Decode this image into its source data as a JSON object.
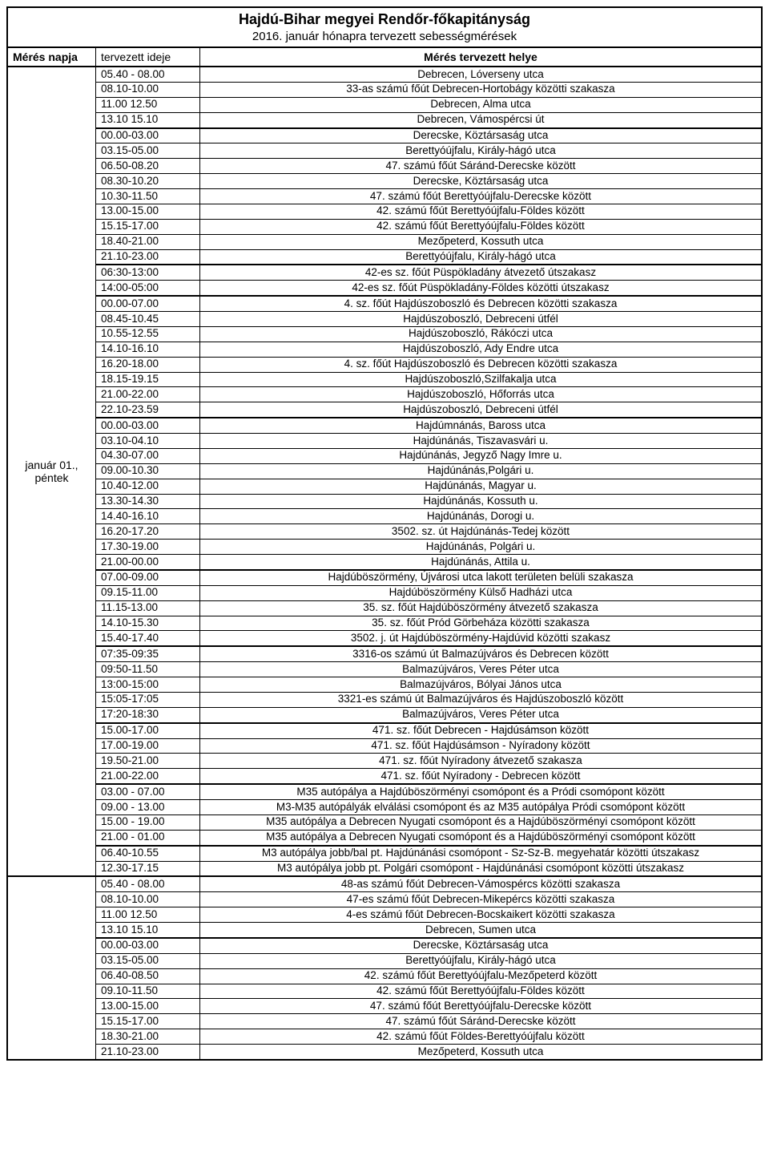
{
  "title": "Hajdú-Bihar megyei Rendőr-főkapitányság",
  "subtitle": "2016. január hónapra tervezett sebességmérések",
  "header": {
    "date": "Mérés napja",
    "time": "tervezett ideje",
    "location": "Mérés tervezett helye"
  },
  "block1": {
    "date_label": "január 01., péntek",
    "groups": [
      [
        {
          "t": "05.40 - 08.00",
          "l": "Debrecen, Lóverseny utca"
        },
        {
          "t": "08.10-10.00",
          "l": "33-as számú főút Debrecen-Hortobágy közötti szakasza"
        },
        {
          "t": "11.00 12.50",
          "l": "Debrecen, Alma utca"
        },
        {
          "t": "13.10 15.10",
          "l": "Debrecen, Vámospércsi út"
        }
      ],
      [
        {
          "t": "00.00-03.00",
          "l": "Derecske, Köztársaság utca"
        },
        {
          "t": "03.15-05.00",
          "l": "Berettyóújfalu, Király-hágó utca"
        },
        {
          "t": "06.50-08.20",
          "l": "47. számú főút Sáránd-Derecske között"
        },
        {
          "t": "08.30-10.20",
          "l": "Derecske, Köztársaság utca"
        },
        {
          "t": "10.30-11.50",
          "l": "47. számú főút Berettyóújfalu-Derecske között"
        },
        {
          "t": "13.00-15.00",
          "l": "42. számú főút Berettyóújfalu-Földes között"
        },
        {
          "t": "15.15-17.00",
          "l": "42. számú főút Berettyóújfalu-Földes között"
        },
        {
          "t": "18.40-21.00",
          "l": "Mezőpeterd, Kossuth utca"
        },
        {
          "t": "21.10-23.00",
          "l": "Berettyóújfalu, Király-hágó utca"
        }
      ],
      [
        {
          "t": "06:30-13:00",
          "l": "42-es sz. főút Püspökladány átvezető útszakasz"
        },
        {
          "t": "14:00-05:00",
          "l": "42-es sz. főút Püspökladány-Földes közötti útszakasz"
        }
      ],
      [
        {
          "t": "00.00-07.00",
          "l": "4. sz. főút Hajdúszoboszló és Debrecen közötti szakasza"
        },
        {
          "t": "08.45-10.45",
          "l": "Hajdúszoboszló, Debreceni útfél"
        },
        {
          "t": "10.55-12.55",
          "l": "Hajdúszoboszló, Rákóczi utca"
        },
        {
          "t": "14.10-16.10",
          "l": "Hajdúszoboszló, Ady Endre utca"
        },
        {
          "t": "16.20-18.00",
          "l": "4. sz. főút Hajdúszoboszló és Debrecen közötti szakasza"
        },
        {
          "t": "18.15-19.15",
          "l": "Hajdúszoboszló,Szilfakalja utca"
        },
        {
          "t": "21.00-22.00",
          "l": "Hajdúszoboszló, Hőforrás utca"
        },
        {
          "t": "22.10-23.59",
          "l": "Hajdúszoboszló, Debreceni útfél"
        }
      ],
      [
        {
          "t": "00.00-03.00",
          "l": "Hajdúmnánás, Baross utca"
        },
        {
          "t": "03.10-04.10",
          "l": "Hajdúnánás, Tiszavasvári u."
        },
        {
          "t": "04.30-07.00",
          "l": "Hajdúnánás, Jegyző Nagy Imre u."
        },
        {
          "t": "09.00-10.30",
          "l": "Hajdúnánás,Polgári u."
        },
        {
          "t": "10.40-12.00",
          "l": "Hajdúnánás, Magyar u."
        },
        {
          "t": "13.30-14.30",
          "l": "Hajdúnánás, Kossuth u."
        },
        {
          "t": "14.40-16.10",
          "l": "Hajdúnánás, Dorogi u."
        },
        {
          "t": "16.20-17.20",
          "l": "3502. sz. út Hajdúnánás-Tedej között"
        },
        {
          "t": "17.30-19.00",
          "l": "Hajdúnánás, Polgári u."
        },
        {
          "t": "21.00-00.00",
          "l": "Hajdúnánás, Attila  u."
        }
      ],
      [
        {
          "t": "07.00-09.00",
          "l": "Hajdúböszörmény, Újvárosi utca lakott területen belüli szakasza"
        },
        {
          "t": "09.15-11.00",
          "l": "Hajdúböszörmény Külső Hadházi utca"
        },
        {
          "t": "11.15-13.00",
          "l": "35. sz. főút Hajdúböszörmény átvezető szakasza"
        },
        {
          "t": "14.10-15.30",
          "l": "35. sz. főút Pród Görbeháza közötti szakasza"
        },
        {
          "t": "15.40-17.40",
          "l": "3502. j. út Hajdúböszörmény-Hajdúvid közötti szakasz"
        }
      ],
      [
        {
          "t": "07:35-09:35",
          "l": "3316-os számú út Balmazújváros és Debrecen között"
        },
        {
          "t": "09:50-11.50",
          "l": "Balmazújváros, Veres Péter utca"
        },
        {
          "t": "13:00-15:00",
          "l": "Balmazújváros, Bólyai János utca"
        },
        {
          "t": "15:05-17:05",
          "l": "3321-es számú út Balmazújváros és Hajdúszoboszló között"
        },
        {
          "t": "17:20-18:30",
          "l": "Balmazújváros, Veres Péter utca"
        }
      ],
      [
        {
          "t": "15.00-17.00",
          "l": "471. sz. főút Debrecen - Hajdúsámson között"
        },
        {
          "t": "17.00-19.00",
          "l": "471. sz. főút Hajdúsámson - Nyíradony között"
        },
        {
          "t": "19.50-21.00",
          "l": "471. sz. főút Nyíradony átvezető szakasza"
        },
        {
          "t": "21.00-22.00",
          "l": "471. sz. főút Nyíradony - Debrecen között"
        }
      ],
      [
        {
          "t": "03.00 - 07.00",
          "l": "M35 autópálya a Hajdúböszörményi csomópont és a Pródi csomópont között"
        },
        {
          "t": "09.00 - 13.00",
          "l": "M3-M35 autópályák elválási csomópont és az M35 autópálya Pródi csomópont között"
        },
        {
          "t": "15.00 - 19.00",
          "l": "M35 autópálya a Debrecen Nyugati csomópont és a Hajdúböszörményi csomópont között"
        },
        {
          "t": "21.00 - 01.00",
          "l": "M35 autópálya a Debrecen Nyugati csomópont és a Hajdúböszörményi csomópont között"
        }
      ],
      [
        {
          "t": "06.40-10.55",
          "l": "M3 autópálya jobb/bal pt. Hajdúnánási csomópont - Sz-Sz-B. megyehatár közötti útszakasz"
        },
        {
          "t": "12.30-17.15",
          "l": "M3 autópálya jobb pt. Polgári csomópont - Hajdúnánási csomópont közötti útszakasz"
        }
      ]
    ]
  },
  "block2": {
    "groups": [
      [
        {
          "t": "05.40 - 08.00",
          "l": "48-as számú főút Debrecen-Vámospércs közötti szakasza"
        },
        {
          "t": "08.10-10.00",
          "l": "47-es számú főút Debrecen-Mikepércs közötti szakasza"
        },
        {
          "t": "11.00 12.50",
          "l": "4-es számú főút Debrecen-Bocskaikert közötti szakasza"
        },
        {
          "t": "13.10 15.10",
          "l": "Debrecen, Sumen utca"
        }
      ],
      [
        {
          "t": "00.00-03.00",
          "l": "Derecske, Köztársaság utca"
        },
        {
          "t": "03.15-05.00",
          "l": "Berettyóújfalu, Király-hágó utca"
        },
        {
          "t": "06.40-08.50",
          "l": "42. számú főút Berettyóújfalu-Mezőpeterd között"
        },
        {
          "t": "09.10-11.50",
          "l": "42. számú főút Berettyóújfalu-Földes között"
        },
        {
          "t": "13.00-15.00",
          "l": "47. számú főút Berettyóújfalu-Derecske között"
        },
        {
          "t": "15.15-17.00",
          "l": "47. számú főút Sáránd-Derecske között"
        },
        {
          "t": "18.30-21.00",
          "l": "42. számú főút Földes-Berettyóújfalu között"
        },
        {
          "t": "21.10-23.00",
          "l": "Mezőpeterd, Kossuth utca"
        }
      ]
    ]
  }
}
